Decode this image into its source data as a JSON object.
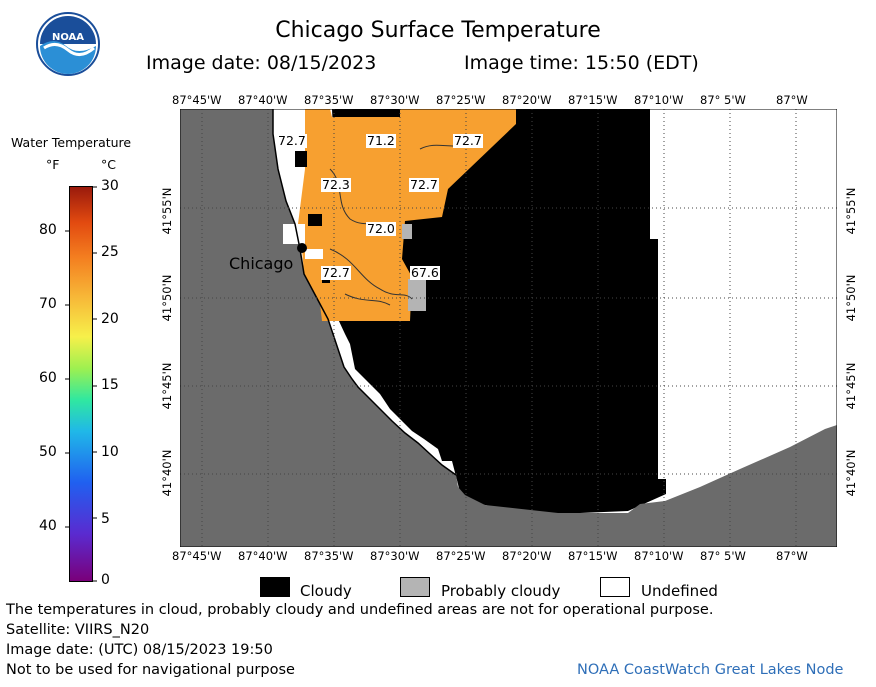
{
  "header": {
    "title": "Chicago Surface Temperature",
    "image_date": "Image date: 08/15/2023",
    "image_time": "Image time: 15:50 (EDT)"
  },
  "logo": {
    "text": "NOAA"
  },
  "legend": {
    "title": "Water Temperature",
    "unit_f": "°F",
    "unit_c": "°C",
    "fahrenheit_ticks": [
      "80",
      "70",
      "60",
      "50",
      "40"
    ],
    "celsius_ticks": [
      "30",
      "25",
      "20",
      "15",
      "10",
      "5",
      "0"
    ]
  },
  "map": {
    "lon_labels": [
      "87°45'W",
      "87°40'W",
      "87°35'W",
      "87°30'W",
      "87°25'W",
      "87°20'W",
      "87°15'W",
      "87°10'W",
      "87° 5'W",
      "87°W"
    ],
    "lat_labels": [
      "41°55'N",
      "41°50'N",
      "41°45'N",
      "41°40'N"
    ],
    "city_label": "Chicago",
    "temperature_labels": [
      "72.7",
      "71.2",
      "72.7",
      "72.3",
      "72.7",
      "72.0",
      "72.7",
      "67.6"
    ],
    "colors": {
      "land": "#6b6b6b",
      "cloud": "#000000",
      "warm_water": "#f7a030",
      "probably_cloudy": "#b4b4b4"
    }
  },
  "key": {
    "cloudy": "Cloudy",
    "probably_cloudy": "Probably cloudy",
    "undefined": "Undefined"
  },
  "footer": {
    "disclaimer": "The temperatures in cloud, probably cloudy and undefined areas are not for operational purpose.",
    "satellite": "Satellite: VIIRS_N20",
    "utc_date": "Image date: (UTC) 08/15/2023  19:50",
    "nav_warning": "Not to be used for navigational purpose",
    "credit": "NOAA CoastWatch Great Lakes Node"
  }
}
